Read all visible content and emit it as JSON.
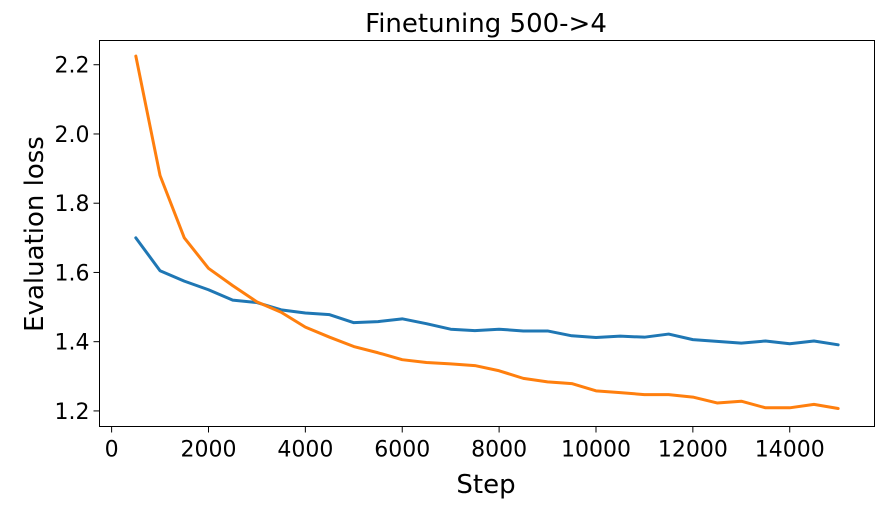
{
  "chart_data": {
    "type": "line",
    "title": "Finetuning 500->4",
    "xlabel": "Step",
    "ylabel": "Evaluation loss",
    "xlim": [
      -250,
      15750
    ],
    "ylim": [
      1.155,
      2.27
    ],
    "grid": false,
    "x_ticks": [
      0,
      2000,
      4000,
      6000,
      8000,
      10000,
      12000,
      14000
    ],
    "x_tick_labels": [
      "0",
      "2000",
      "4000",
      "6000",
      "8000",
      "10000",
      "12000",
      "14000"
    ],
    "y_ticks": [
      1.2,
      1.4,
      1.6,
      1.8,
      2.0,
      2.2
    ],
    "y_tick_labels": [
      "1.2",
      "1.4",
      "1.6",
      "1.8",
      "2.0",
      "2.2"
    ],
    "x": [
      500,
      1000,
      1500,
      2000,
      2500,
      3000,
      3500,
      4000,
      4500,
      5000,
      5500,
      6000,
      6500,
      7000,
      7500,
      8000,
      8500,
      9000,
      9500,
      10000,
      10500,
      11000,
      11500,
      12000,
      12500,
      13000,
      13500,
      14000,
      14500,
      15000
    ],
    "series": [
      {
        "color": "#1f77b4",
        "values": [
          1.7,
          1.605,
          1.575,
          1.55,
          1.52,
          1.513,
          1.492,
          1.483,
          1.478,
          1.455,
          1.458,
          1.466,
          1.452,
          1.436,
          1.432,
          1.436,
          1.431,
          1.431,
          1.417,
          1.412,
          1.416,
          1.413,
          1.422,
          1.406,
          1.401,
          1.396,
          1.402,
          1.394,
          1.402,
          1.391
        ]
      },
      {
        "color": "#ff7f0e",
        "values": [
          2.225,
          1.88,
          1.7,
          1.612,
          1.562,
          1.515,
          1.485,
          1.442,
          1.413,
          1.386,
          1.368,
          1.348,
          1.34,
          1.336,
          1.331,
          1.316,
          1.294,
          1.284,
          1.279,
          1.258,
          1.253,
          1.247,
          1.247,
          1.24,
          1.223,
          1.228,
          1.209,
          1.209,
          1.219,
          1.207
        ]
      }
    ]
  }
}
